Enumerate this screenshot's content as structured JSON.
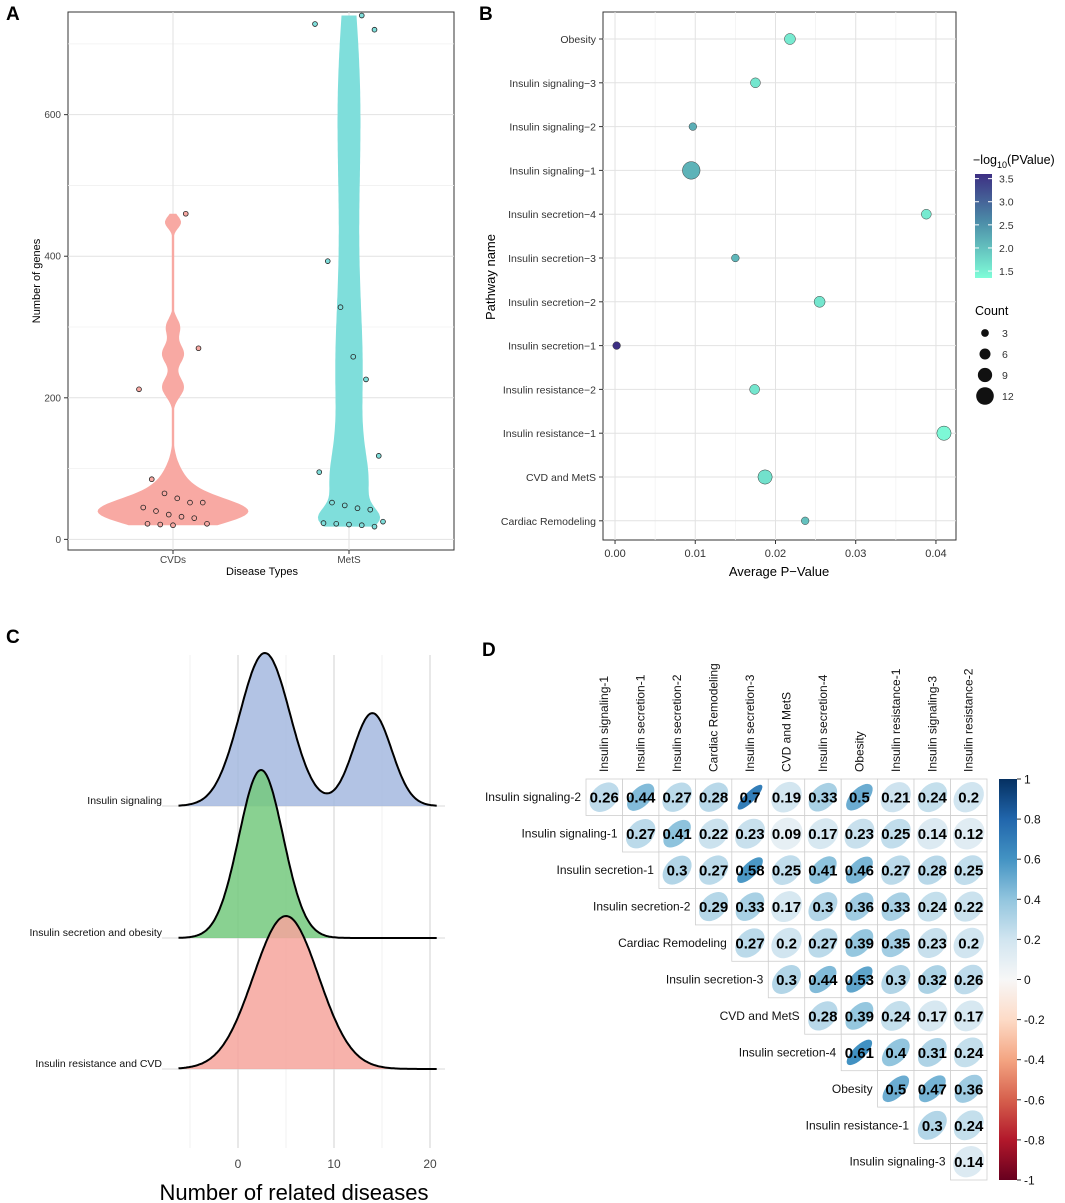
{
  "chart_data": [
    {
      "panel": "A",
      "type": "violin",
      "xlabel": "Disease Types",
      "ylabel": "Number of genes",
      "categories": [
        "CVDs",
        "MetS"
      ],
      "yticks": [
        0,
        200,
        400,
        600
      ],
      "ylim": [
        -15,
        745
      ],
      "colors": {
        "CVDs": "#f8a9a3",
        "MetS": "#7fdedb"
      },
      "points": {
        "CVDs": [
          460,
          270,
          212,
          85,
          65,
          58,
          52,
          52,
          45,
          40,
          35,
          32,
          30,
          22,
          22,
          21,
          20
        ],
        "MetS": [
          740,
          720,
          728,
          393,
          328,
          258,
          226,
          118,
          95,
          52,
          48,
          44,
          42,
          25,
          23,
          22,
          21,
          20,
          18
        ]
      }
    },
    {
      "panel": "B",
      "type": "scatter",
      "xlabel": "Average P−Value",
      "ylabel": "Pathway name",
      "xticks": [
        "0.00",
        "0.01",
        "0.02",
        "0.03",
        "0.04"
      ],
      "xlim": [
        -0.0015,
        0.0425
      ],
      "categories": [
        "Obesity",
        "Insulin signaling−3",
        "Insulin signaling−2",
        "Insulin signaling−1",
        "Insulin secretion−4",
        "Insulin secretion−3",
        "Insulin secretion−2",
        "Insulin secretion−1",
        "Insulin resistance−2",
        "Insulin resistance−1",
        "CVD and MetS",
        "Cardiac Remodeling"
      ],
      "avg_p": [
        0.0218,
        0.0175,
        0.0097,
        0.0095,
        0.0388,
        0.015,
        0.0255,
        0.0002,
        0.0174,
        0.041,
        0.0187,
        0.0237
      ],
      "neg_log10_p": [
        1.55,
        1.6,
        2.2,
        2.15,
        1.55,
        2.1,
        1.6,
        3.6,
        1.6,
        1.4,
        1.65,
        2.0
      ],
      "count": [
        6,
        5,
        3,
        12,
        5,
        3,
        6,
        3,
        5,
        9,
        9,
        3
      ],
      "color_legend": {
        "title_pre": "−log",
        "title_sub": "10",
        "title_post": "(PValue)",
        "ticks": [
          "3.5",
          "3.0",
          "2.5",
          "2.0",
          "1.5"
        ],
        "range": [
          1.35,
          3.6
        ]
      },
      "size_legend": {
        "title": "Count",
        "values": [
          3,
          6,
          9,
          12
        ]
      }
    },
    {
      "panel": "C",
      "type": "ridgeline",
      "xlabel": "Number of related diseases",
      "xticks": [
        0,
        10,
        20
      ],
      "xlim": [
        -6,
        21
      ],
      "series": [
        {
          "name": "Insulin signaling",
          "color": "#a5b8df",
          "components": [
            [
              2.8,
              2.6,
              0.56
            ],
            [
              14.0,
              2.0,
              0.34
            ]
          ]
        },
        {
          "name": "Insulin secretion and obesity",
          "color": "#74c97e",
          "components": [
            [
              2.4,
              2.3,
              1.0
            ]
          ]
        },
        {
          "name": "Insulin resistance and CVD",
          "color": "#f6a59c",
          "components": [
            [
              5.0,
              3.4,
              1.0
            ]
          ]
        }
      ]
    },
    {
      "panel": "D",
      "type": "correlation-matrix",
      "columns": [
        "Insulin signaling-1",
        "Insulin secretion-1",
        "Insulin secretion-2",
        "Cardiac Remodeling",
        "Insulin secretion-3",
        "CVD and MetS",
        "Insulin secretion-4",
        "Obesity",
        "Insulin resistance-1",
        "Insulin signaling-3",
        "Insulin resistance-2"
      ],
      "rows": [
        "Insulin signaling-2",
        "Insulin signaling-1",
        "Insulin secretion-1",
        "Insulin secretion-2",
        "Cardiac Remodeling",
        "Insulin secretion-3",
        "CVD and MetS",
        "Insulin secretion-4",
        "Obesity",
        "Insulin resistance-1",
        "Insulin signaling-3"
      ],
      "values": [
        [
          0.26,
          0.44,
          0.27,
          0.28,
          0.7,
          0.19,
          0.33,
          0.5,
          0.21,
          0.24,
          0.2
        ],
        [
          null,
          0.27,
          0.41,
          0.22,
          0.23,
          0.09,
          0.17,
          0.23,
          0.25,
          0.14,
          0.12
        ],
        [
          null,
          null,
          0.3,
          0.27,
          0.58,
          0.25,
          0.41,
          0.46,
          0.27,
          0.28,
          0.25
        ],
        [
          null,
          null,
          null,
          0.29,
          0.33,
          0.17,
          0.3,
          0.36,
          0.33,
          0.24,
          0.22
        ],
        [
          null,
          null,
          null,
          null,
          0.27,
          0.2,
          0.27,
          0.39,
          0.35,
          0.23,
          0.2
        ],
        [
          null,
          null,
          null,
          null,
          null,
          0.3,
          0.44,
          0.53,
          0.3,
          0.32,
          0.26
        ],
        [
          null,
          null,
          null,
          null,
          null,
          null,
          0.28,
          0.39,
          0.24,
          0.17,
          0.17
        ],
        [
          null,
          null,
          null,
          null,
          null,
          null,
          null,
          0.61,
          0.4,
          0.31,
          0.24
        ],
        [
          null,
          null,
          null,
          null,
          null,
          null,
          null,
          null,
          0.5,
          0.47,
          0.36
        ],
        [
          null,
          null,
          null,
          null,
          null,
          null,
          null,
          null,
          null,
          0.3,
          0.24
        ],
        [
          null,
          null,
          null,
          null,
          null,
          null,
          null,
          null,
          null,
          null,
          0.14
        ]
      ],
      "colorbar_ticks": [
        "1",
        "0.8",
        "0.6",
        "0.4",
        "0.2",
        "0",
        "-0.2",
        "-0.4",
        "-0.6",
        "-0.8",
        "-1"
      ]
    }
  ],
  "panel_labels": [
    "A",
    "B",
    "C",
    "D"
  ]
}
